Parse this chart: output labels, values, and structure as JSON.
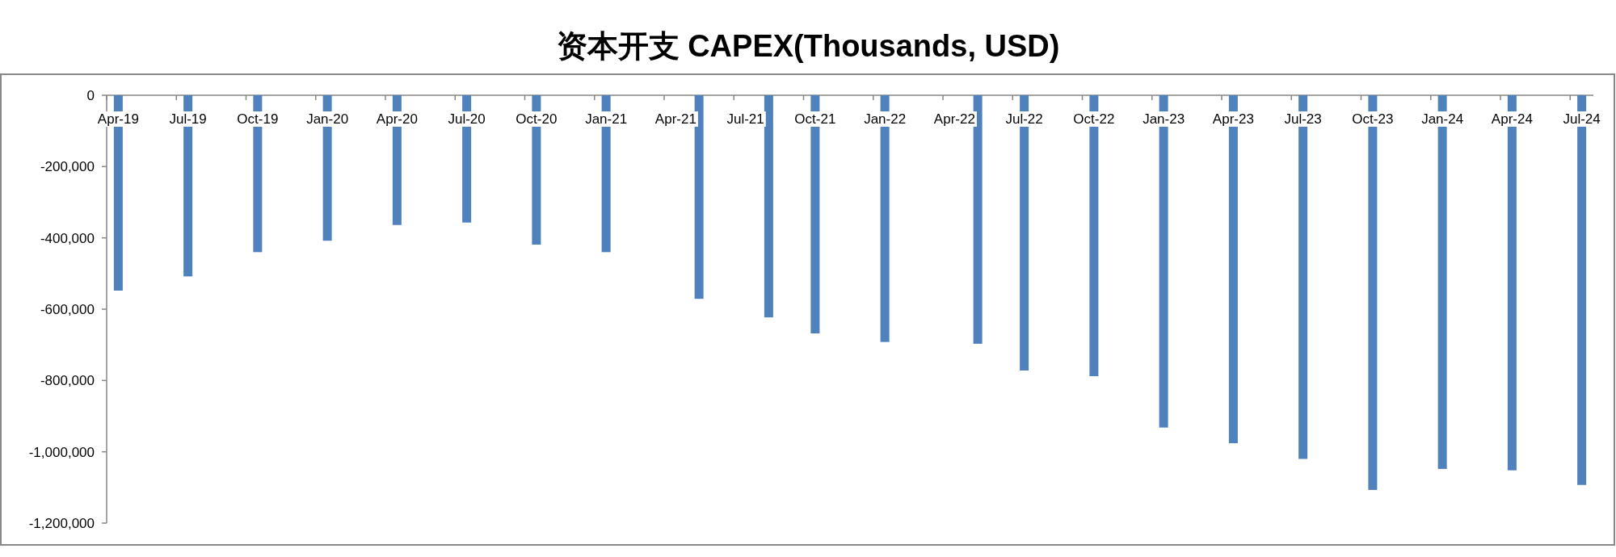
{
  "chart_data": {
    "type": "bar",
    "title": "资本开支 CAPEX(Thousands, USD)",
    "color": "#4f81bd",
    "x": [
      "2019-04",
      "2019-07",
      "2019-10",
      "2020-01",
      "2020-04",
      "2020-07",
      "2020-10",
      "2021-01",
      "2021-05",
      "2021-08",
      "2021-10",
      "2022-01",
      "2022-05",
      "2022-07",
      "2022-10",
      "2023-01",
      "2023-04",
      "2023-07",
      "2023-10",
      "2024-01",
      "2024-04",
      "2024-07"
    ],
    "values": [
      -548000,
      -508000,
      -440000,
      -408000,
      -364000,
      -357000,
      -419000,
      -440000,
      -571000,
      -623000,
      -668000,
      -692000,
      -697000,
      -772000,
      -788000,
      -932000,
      -976000,
      -1020000,
      -1107000,
      -1048000,
      -1052000,
      -1093000
    ],
    "xlim": [
      "2019-04-01",
      "2024-08-01"
    ],
    "xticks": [
      {
        "value": "2019-04",
        "label": "Apr-19"
      },
      {
        "value": "2019-07",
        "label": "Jul-19"
      },
      {
        "value": "2019-10",
        "label": "Oct-19"
      },
      {
        "value": "2020-01",
        "label": "Jan-20"
      },
      {
        "value": "2020-04",
        "label": "Apr-20"
      },
      {
        "value": "2020-07",
        "label": "Jul-20"
      },
      {
        "value": "2020-10",
        "label": "Oct-20"
      },
      {
        "value": "2021-01",
        "label": "Jan-21"
      },
      {
        "value": "2021-04",
        "label": "Apr-21"
      },
      {
        "value": "2021-07",
        "label": "Jul-21"
      },
      {
        "value": "2021-10",
        "label": "Oct-21"
      },
      {
        "value": "2022-01",
        "label": "Jan-22"
      },
      {
        "value": "2022-04",
        "label": "Apr-22"
      },
      {
        "value": "2022-07",
        "label": "Jul-22"
      },
      {
        "value": "2022-10",
        "label": "Oct-22"
      },
      {
        "value": "2023-01",
        "label": "Jan-23"
      },
      {
        "value": "2023-04",
        "label": "Apr-23"
      },
      {
        "value": "2023-07",
        "label": "Jul-23"
      },
      {
        "value": "2023-10",
        "label": "Oct-23"
      },
      {
        "value": "2024-01",
        "label": "Jan-24"
      },
      {
        "value": "2024-04",
        "label": "Apr-24"
      },
      {
        "value": "2024-07",
        "label": "Jul-24"
      }
    ],
    "ylim": [
      -1200000,
      0
    ],
    "yticks": [
      {
        "value": 0,
        "label": "0"
      },
      {
        "value": -200000,
        "label": "-200,000"
      },
      {
        "value": -400000,
        "label": "-400,000"
      },
      {
        "value": -600000,
        "label": "-600,000"
      },
      {
        "value": -800000,
        "label": "-800,000"
      },
      {
        "value": -1000000,
        "label": "-1,000,000"
      },
      {
        "value": -1200000,
        "label": "-1,200,000"
      }
    ]
  }
}
